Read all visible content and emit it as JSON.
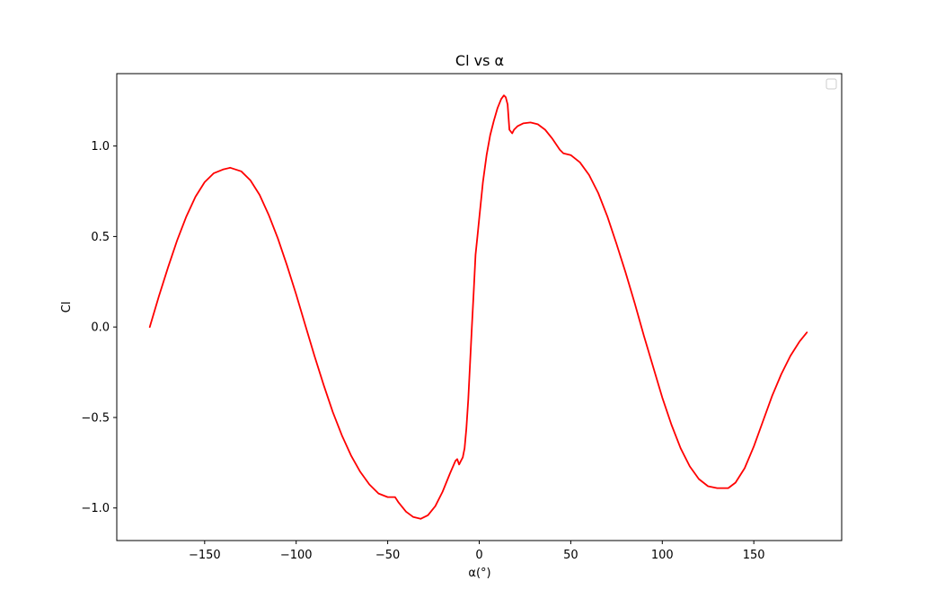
{
  "chart_data": {
    "type": "line",
    "title": "Cl vs α",
    "xlabel": "α(°)",
    "ylabel": "Cl",
    "xlim": [
      -198,
      198
    ],
    "ylim": [
      -1.18,
      1.4
    ],
    "xticks": [
      -150,
      -100,
      -50,
      0,
      50,
      100,
      150
    ],
    "xtick_labels": [
      "−150",
      "−100",
      "−50",
      "0",
      "50",
      "100",
      "150"
    ],
    "yticks": [
      -1.0,
      -0.5,
      0.0,
      0.5,
      1.0
    ],
    "ytick_labels": [
      "−1.0",
      "−0.5",
      "0.0",
      "0.5",
      "1.0"
    ],
    "grid": false,
    "legend": {
      "position": "top-right",
      "entries": []
    },
    "series": [
      {
        "color": "#ff0000",
        "x": [
          -180,
          -175,
          -170,
          -165,
          -160,
          -155,
          -150,
          -145,
          -140,
          -136,
          -130,
          -125,
          -120,
          -115,
          -110,
          -105,
          -100,
          -95,
          -90,
          -85,
          -80,
          -75,
          -70,
          -65,
          -60,
          -55,
          -50,
          -46,
          -44,
          -40,
          -36,
          -32,
          -28,
          -24,
          -20,
          -16,
          -13,
          -12,
          -11,
          -10,
          -9,
          -8,
          -7,
          -6,
          -5,
          -4,
          -3,
          -2,
          -1,
          0,
          2,
          4,
          6,
          8,
          10,
          12,
          13.5,
          14.5,
          15.5,
          16.5,
          18,
          19,
          21,
          24,
          28,
          32,
          36,
          40,
          44,
          46,
          50,
          55,
          60,
          65,
          70,
          75,
          80,
          85,
          90,
          95,
          100,
          105,
          110,
          115,
          120,
          125,
          130,
          136,
          140,
          145,
          150,
          155,
          160,
          165,
          170,
          175,
          179
        ],
        "y": [
          0.0,
          0.17,
          0.33,
          0.48,
          0.61,
          0.72,
          0.8,
          0.85,
          0.87,
          0.88,
          0.86,
          0.81,
          0.73,
          0.62,
          0.49,
          0.34,
          0.18,
          0.01,
          -0.16,
          -0.32,
          -0.47,
          -0.6,
          -0.71,
          -0.8,
          -0.87,
          -0.92,
          -0.94,
          -0.94,
          -0.97,
          -1.02,
          -1.05,
          -1.06,
          -1.04,
          -0.99,
          -0.91,
          -0.81,
          -0.74,
          -0.73,
          -0.76,
          -0.74,
          -0.72,
          -0.67,
          -0.56,
          -0.4,
          -0.2,
          0.0,
          0.2,
          0.4,
          0.5,
          0.6,
          0.8,
          0.95,
          1.06,
          1.14,
          1.21,
          1.26,
          1.28,
          1.27,
          1.23,
          1.09,
          1.07,
          1.09,
          1.11,
          1.125,
          1.13,
          1.12,
          1.09,
          1.04,
          0.98,
          0.96,
          0.95,
          0.91,
          0.84,
          0.74,
          0.61,
          0.46,
          0.3,
          0.13,
          -0.05,
          -0.22,
          -0.39,
          -0.54,
          -0.67,
          -0.77,
          -0.84,
          -0.88,
          -0.89,
          -0.89,
          -0.86,
          -0.78,
          -0.66,
          -0.52,
          -0.38,
          -0.26,
          -0.16,
          -0.08,
          -0.03
        ]
      }
    ]
  }
}
